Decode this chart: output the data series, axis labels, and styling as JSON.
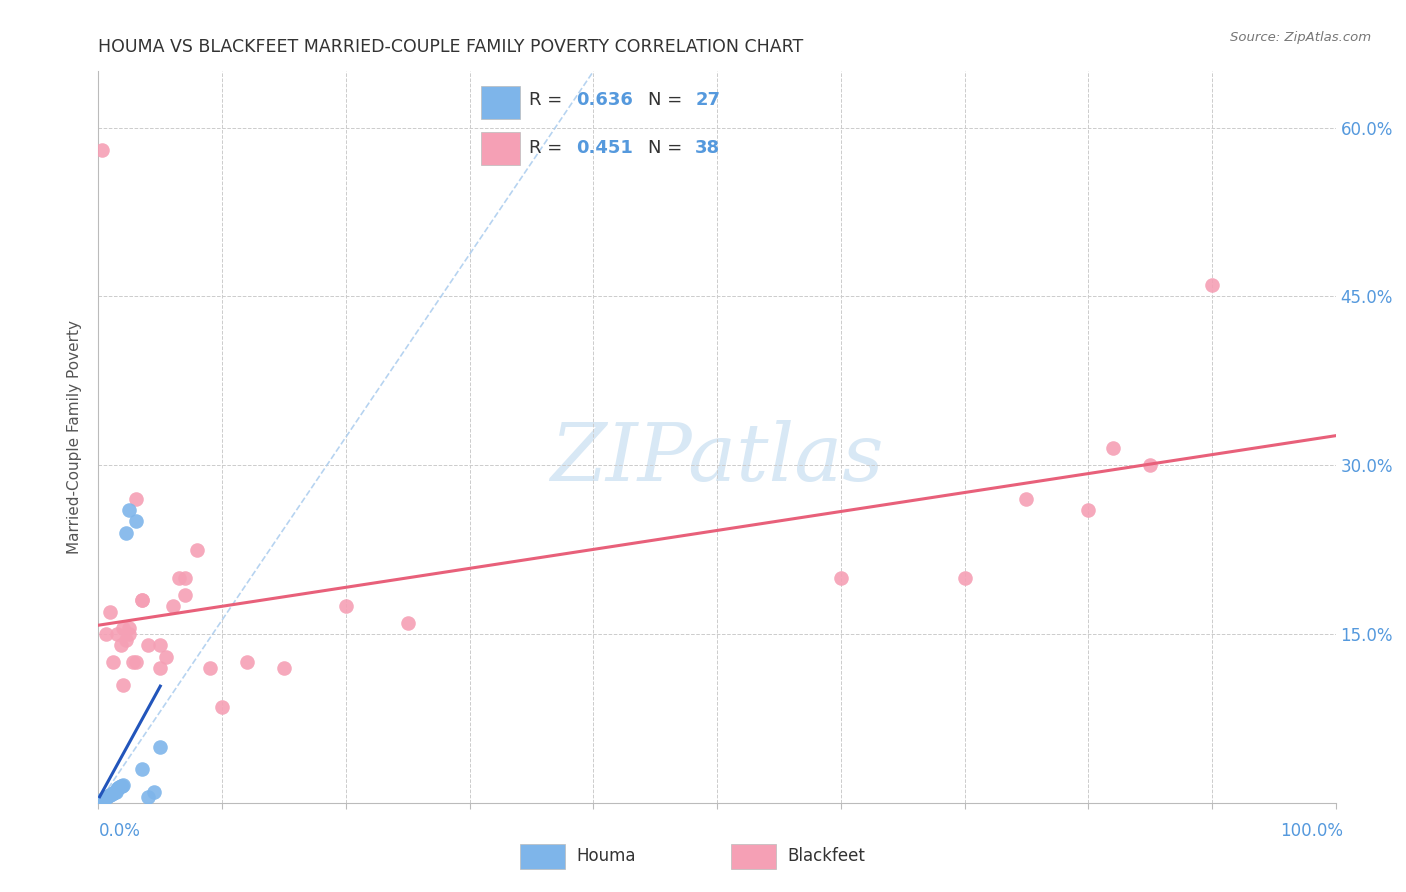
{
  "title": "HOUMA VS BLACKFEET MARRIED-COUPLE FAMILY POVERTY CORRELATION CHART",
  "source": "Source: ZipAtlas.com",
  "ylabel": "Married-Couple Family Poverty",
  "xlim": [
    0,
    1.0
  ],
  "ylim": [
    0,
    0.65
  ],
  "yticks": [
    0.0,
    0.15,
    0.3,
    0.45,
    0.6
  ],
  "ytick_labels": [
    "",
    "15.0%",
    "30.0%",
    "45.0%",
    "60.0%"
  ],
  "houma_color": "#7EB5EA",
  "blackfeet_color": "#F5A0B5",
  "houma_line_color": "#2255BB",
  "blackfeet_line_color": "#E8607A",
  "dashed_line_color": "#AACCEE",
  "watermark_color": "#D8E8F5",
  "tick_color": "#5599DD",
  "R_houma": 0.636,
  "N_houma": 27,
  "R_blackfeet": 0.451,
  "N_blackfeet": 38,
  "houma_x": [
    0.001,
    0.002,
    0.003,
    0.004,
    0.005,
    0.006,
    0.007,
    0.008,
    0.009,
    0.01,
    0.011,
    0.012,
    0.013,
    0.014,
    0.015,
    0.016,
    0.017,
    0.018,
    0.019,
    0.02,
    0.022,
    0.025,
    0.03,
    0.035,
    0.04,
    0.045,
    0.05
  ],
  "houma_y": [
    0.0,
    0.001,
    0.002,
    0.003,
    0.004,
    0.005,
    0.005,
    0.006,
    0.007,
    0.008,
    0.008,
    0.009,
    0.01,
    0.01,
    0.012,
    0.013,
    0.014,
    0.015,
    0.015,
    0.016,
    0.24,
    0.26,
    0.25,
    0.03,
    0.005,
    0.01,
    0.05
  ],
  "blackfeet_x": [
    0.003,
    0.006,
    0.009,
    0.012,
    0.015,
    0.018,
    0.02,
    0.022,
    0.025,
    0.028,
    0.03,
    0.035,
    0.04,
    0.05,
    0.055,
    0.06,
    0.065,
    0.07,
    0.08,
    0.09,
    0.1,
    0.12,
    0.15,
    0.2,
    0.25,
    0.6,
    0.7,
    0.75,
    0.8,
    0.82,
    0.85,
    0.9,
    0.02,
    0.025,
    0.03,
    0.035,
    0.05,
    0.07
  ],
  "blackfeet_y": [
    0.58,
    0.15,
    0.17,
    0.125,
    0.15,
    0.14,
    0.105,
    0.145,
    0.15,
    0.125,
    0.27,
    0.18,
    0.14,
    0.14,
    0.13,
    0.175,
    0.2,
    0.2,
    0.225,
    0.12,
    0.085,
    0.125,
    0.12,
    0.175,
    0.16,
    0.2,
    0.2,
    0.27,
    0.26,
    0.315,
    0.3,
    0.46,
    0.155,
    0.155,
    0.125,
    0.18,
    0.12,
    0.185
  ]
}
